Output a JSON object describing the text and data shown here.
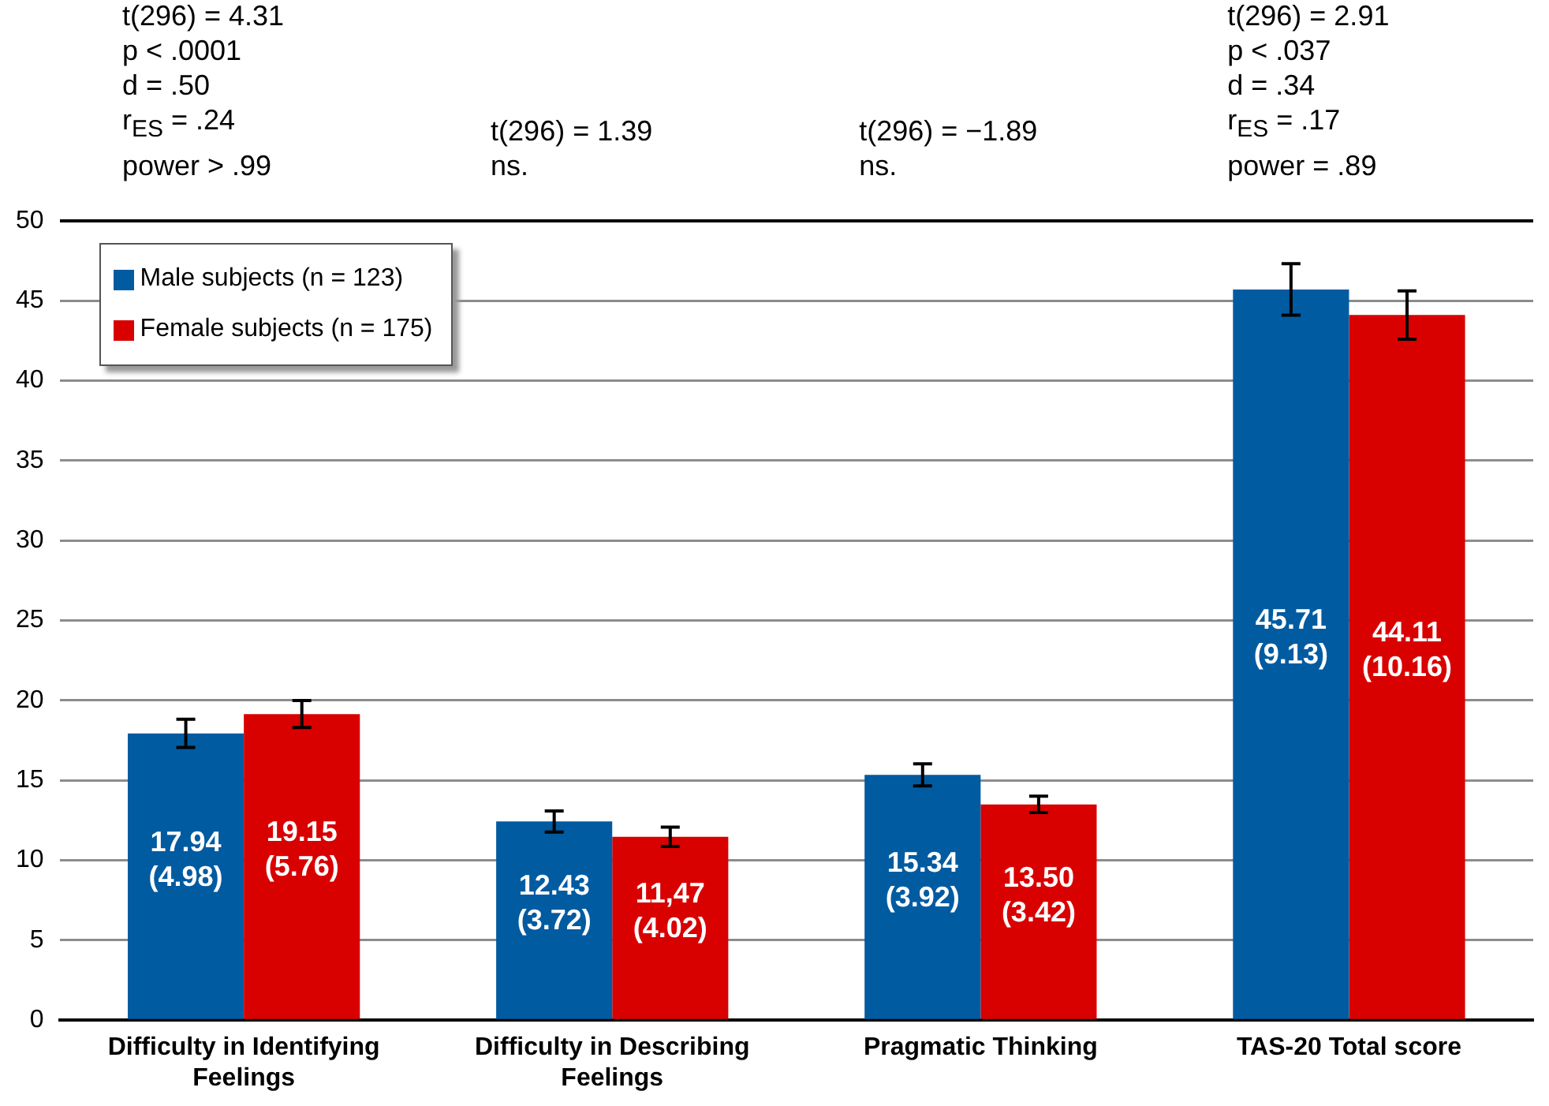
{
  "chart_data": {
    "type": "bar",
    "categories": [
      "Difficulty in Identifying Feelings",
      "Difficulty in Describing Feelings",
      "Pragmatic Thinking",
      "TAS-20 Total score"
    ],
    "series": [
      {
        "name": "Male subjects (n = 123)",
        "color": "#005ba1",
        "values": [
          17.94,
          12.43,
          15.34,
          45.71
        ],
        "errors": [
          0.88,
          0.66,
          0.69,
          1.61
        ],
        "value_labels": [
          "17.94\n(4.98)",
          "12.43\n(3.72)",
          "15.34\n(3.92)",
          "45.71\n(9.13)"
        ]
      },
      {
        "name": "Female subjects (n = 175)",
        "color": "#d90000",
        "values": [
          19.15,
          11.47,
          13.5,
          44.11
        ],
        "errors": [
          0.85,
          0.6,
          0.51,
          1.51
        ],
        "value_labels": [
          "19.15\n(5.76)",
          "11,47\n(4.02)",
          "13.50\n(3.42)",
          "44.11\n(10.16)"
        ]
      }
    ],
    "annotations": [
      "t(296) = 4.31\np < .0001\nd = .50\nr$_{ES}$ = .24\npower > .99",
      "t(296) = 1.39\nns.",
      "t(296) = −1.89\nns.",
      "t(296) = 2.91\np < .037\nd = .34\nr$_{ES}$ = .17\npower = .89"
    ],
    "ylim": [
      0,
      50
    ],
    "yticks": [
      0,
      5,
      10,
      15,
      20,
      25,
      30,
      35,
      40,
      45,
      50
    ],
    "grid": "y",
    "legend": "top left"
  }
}
